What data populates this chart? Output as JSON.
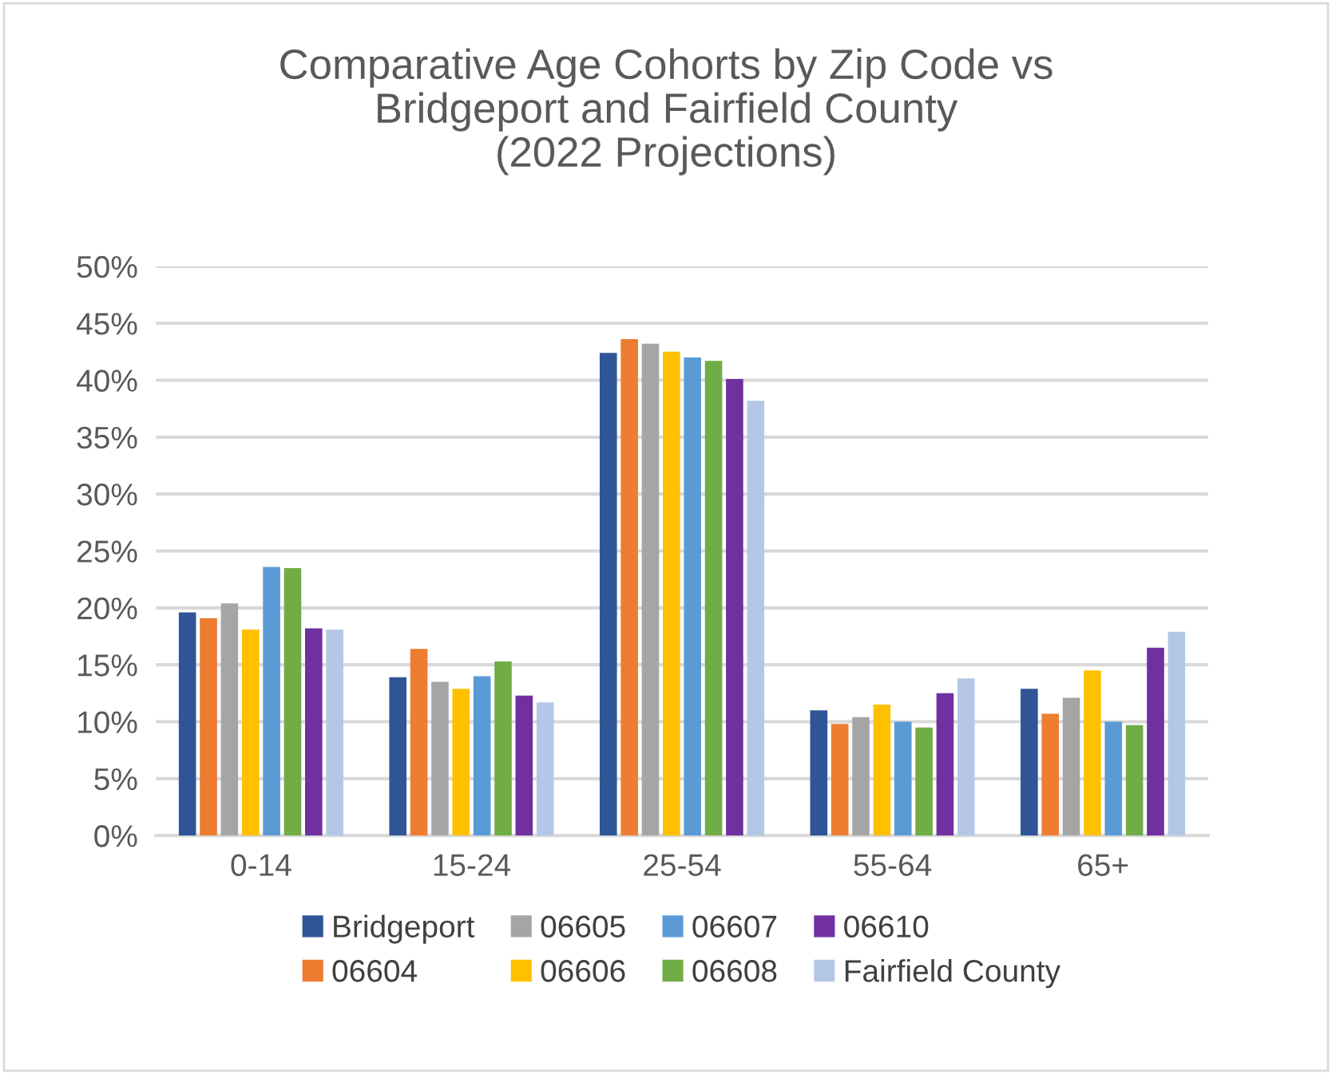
{
  "chart_data": {
    "type": "bar",
    "title": "Comparative Age Cohorts by Zip Code vs\nBridgeport and Fairfield County\n(2022 Projections)",
    "categories": [
      "0-14",
      "15-24",
      "25-54",
      "55-64",
      "65+"
    ],
    "series": [
      {
        "name": "Bridgeport",
        "color": "#2f5597",
        "values": [
          19.6,
          13.9,
          42.4,
          11.0,
          12.9
        ]
      },
      {
        "name": "06604",
        "color": "#ed7d31",
        "values": [
          19.1,
          16.4,
          43.6,
          9.8,
          10.7
        ]
      },
      {
        "name": "06605",
        "color": "#a5a5a5",
        "values": [
          20.4,
          13.5,
          43.2,
          10.4,
          12.1
        ]
      },
      {
        "name": "06606",
        "color": "#ffc000",
        "values": [
          18.1,
          12.9,
          42.5,
          11.5,
          14.5
        ]
      },
      {
        "name": "06607",
        "color": "#5b9bd5",
        "values": [
          23.6,
          14.0,
          42.0,
          10.0,
          10.0
        ]
      },
      {
        "name": "06608",
        "color": "#70ad47",
        "values": [
          23.5,
          15.3,
          41.7,
          9.5,
          9.7
        ]
      },
      {
        "name": "06610",
        "color": "#7030a0",
        "values": [
          18.2,
          12.3,
          40.1,
          12.5,
          16.5
        ]
      },
      {
        "name": "Fairfield County",
        "color": "#b4c7e7",
        "values": [
          18.1,
          11.7,
          38.2,
          13.8,
          17.9
        ]
      }
    ],
    "ylim": [
      0,
      50
    ],
    "yticks": [
      {
        "value": 0,
        "label": "0%"
      },
      {
        "value": 5,
        "label": "5%"
      },
      {
        "value": 10,
        "label": "10%"
      },
      {
        "value": 15,
        "label": "15%"
      },
      {
        "value": 20,
        "label": "20%"
      },
      {
        "value": 25,
        "label": "25%"
      },
      {
        "value": 30,
        "label": "30%"
      },
      {
        "value": 35,
        "label": "35%"
      },
      {
        "value": 40,
        "label": "40%"
      },
      {
        "value": 45,
        "label": "45%"
      },
      {
        "value": 50,
        "label": "50%"
      }
    ],
    "grid": "y",
    "legend": "bottom"
  }
}
